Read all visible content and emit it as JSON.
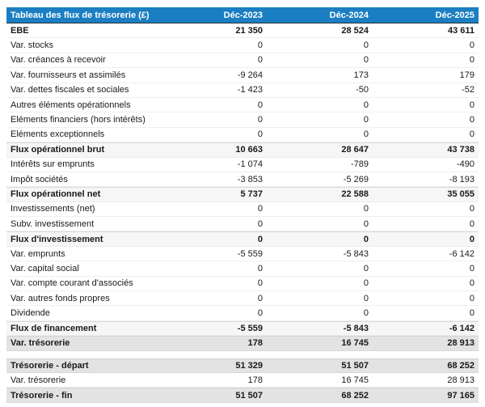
{
  "colors": {
    "header_bg": "#1b7ec2",
    "header_text": "#ffffff",
    "subtotal_row_bg": "#f6f6f6",
    "total_row_bg": "#e3e3e3",
    "body_text": "#1a1a1a"
  },
  "chart_data": {
    "type": "table",
    "title": "Tableau des flux de trésorerie (£)",
    "columns": [
      "Déc-2023",
      "Déc-2024",
      "Déc-2025"
    ],
    "rows": [
      {
        "label": "EBE",
        "display": [
          "21 350",
          "28 524",
          "43 611"
        ],
        "values": [
          21350,
          28524,
          43611
        ],
        "style": "bold"
      },
      {
        "label": "Var. stocks",
        "display": [
          "0",
          "0",
          "0"
        ],
        "values": [
          0,
          0,
          0
        ],
        "style": "normal"
      },
      {
        "label": "Var. créances à recevoir",
        "display": [
          "0",
          "0",
          "0"
        ],
        "values": [
          0,
          0,
          0
        ],
        "style": "normal"
      },
      {
        "label": "Var. fournisseurs et assimilés",
        "display": [
          "-9 264",
          "173",
          "179"
        ],
        "values": [
          -9264,
          173,
          179
        ],
        "style": "normal"
      },
      {
        "label": "Var. dettes fiscales et sociales",
        "display": [
          "-1 423",
          "-50",
          "-52"
        ],
        "values": [
          -1423,
          -50,
          -52
        ],
        "style": "normal"
      },
      {
        "label": "Autres éléments opérationnels",
        "display": [
          "0",
          "0",
          "0"
        ],
        "values": [
          0,
          0,
          0
        ],
        "style": "normal"
      },
      {
        "label": "Eléments financiers (hors intérêts)",
        "display": [
          "0",
          "0",
          "0"
        ],
        "values": [
          0,
          0,
          0
        ],
        "style": "normal"
      },
      {
        "label": "Eléments exceptionnels",
        "display": [
          "0",
          "0",
          "0"
        ],
        "values": [
          0,
          0,
          0
        ],
        "style": "normal"
      },
      {
        "label": "Flux opérationnel brut",
        "display": [
          "10 663",
          "28 647",
          "43 738"
        ],
        "values": [
          10663,
          28647,
          43738
        ],
        "style": "subtotal"
      },
      {
        "label": "Intérêts sur emprunts",
        "display": [
          "-1 074",
          "-789",
          "-490"
        ],
        "values": [
          -1074,
          -789,
          -490
        ],
        "style": "normal"
      },
      {
        "label": "Impôt sociétés",
        "display": [
          "-3 853",
          "-5 269",
          "-8 193"
        ],
        "values": [
          -3853,
          -5269,
          -8193
        ],
        "style": "normal"
      },
      {
        "label": "Flux opérationnel net",
        "display": [
          "5 737",
          "22 588",
          "35 055"
        ],
        "values": [
          5737,
          22588,
          35055
        ],
        "style": "subtotal"
      },
      {
        "label": "Investissements (net)",
        "display": [
          "0",
          "0",
          "0"
        ],
        "values": [
          0,
          0,
          0
        ],
        "style": "normal"
      },
      {
        "label": "Subv. investissement",
        "display": [
          "0",
          "0",
          "0"
        ],
        "values": [
          0,
          0,
          0
        ],
        "style": "normal"
      },
      {
        "label": "Flux d'investissement",
        "display": [
          "0",
          "0",
          "0"
        ],
        "values": [
          0,
          0,
          0
        ],
        "style": "subtotal"
      },
      {
        "label": "Var. emprunts",
        "display": [
          "-5 559",
          "-5 843",
          "-6 142"
        ],
        "values": [
          -5559,
          -5843,
          -6142
        ],
        "style": "normal"
      },
      {
        "label": "Var. capital social",
        "display": [
          "0",
          "0",
          "0"
        ],
        "values": [
          0,
          0,
          0
        ],
        "style": "normal"
      },
      {
        "label": "Var. compte courant d'associés",
        "display": [
          "0",
          "0",
          "0"
        ],
        "values": [
          0,
          0,
          0
        ],
        "style": "normal"
      },
      {
        "label": "Var. autres fonds propres",
        "display": [
          "0",
          "0",
          "0"
        ],
        "values": [
          0,
          0,
          0
        ],
        "style": "normal"
      },
      {
        "label": "Dividende",
        "display": [
          "0",
          "0",
          "0"
        ],
        "values": [
          0,
          0,
          0
        ],
        "style": "normal"
      },
      {
        "label": "Flux de financement",
        "display": [
          "-5 559",
          "-5 843",
          "-6 142"
        ],
        "values": [
          -5559,
          -5843,
          -6142
        ],
        "style": "subtotal"
      },
      {
        "label": "Var. trésorerie",
        "display": [
          "178",
          "16 745",
          "28 913"
        ],
        "values": [
          178,
          16745,
          28913
        ],
        "style": "total"
      },
      {
        "label": "",
        "display": [
          "",
          "",
          ""
        ],
        "values": [
          null,
          null,
          null
        ],
        "style": "spacer"
      },
      {
        "label": "Trésorerie - départ",
        "display": [
          "51 329",
          "51 507",
          "68 252"
        ],
        "values": [
          51329,
          51507,
          68252
        ],
        "style": "total"
      },
      {
        "label": "Var. trésorerie",
        "display": [
          "178",
          "16 745",
          "28 913"
        ],
        "values": [
          178,
          16745,
          28913
        ],
        "style": "normal"
      },
      {
        "label": "Trésorerie - fin",
        "display": [
          "51 507",
          "68 252",
          "97 165"
        ],
        "values": [
          51507,
          68252,
          97165
        ],
        "style": "total"
      }
    ]
  }
}
